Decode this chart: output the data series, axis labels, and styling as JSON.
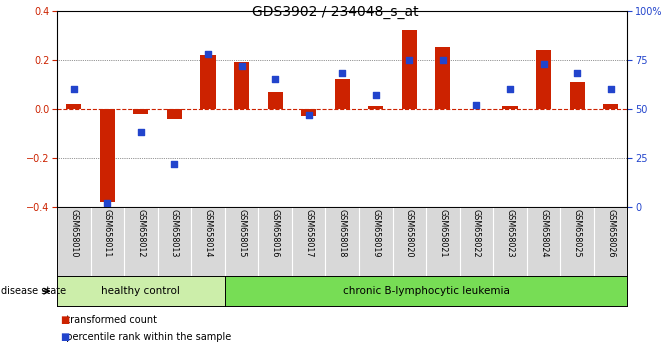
{
  "title": "GDS3902 / 234048_s_at",
  "samples": [
    "GSM658010",
    "GSM658011",
    "GSM658012",
    "GSM658013",
    "GSM658014",
    "GSM658015",
    "GSM658016",
    "GSM658017",
    "GSM658018",
    "GSM658019",
    "GSM658020",
    "GSM658021",
    "GSM658022",
    "GSM658023",
    "GSM658024",
    "GSM658025",
    "GSM658026"
  ],
  "red_bars": [
    0.02,
    -0.38,
    -0.02,
    -0.04,
    0.22,
    0.19,
    0.07,
    -0.03,
    0.12,
    0.01,
    0.32,
    0.25,
    0.0,
    0.01,
    0.24,
    0.11,
    0.02
  ],
  "blue_pct": [
    60,
    2,
    38,
    22,
    78,
    72,
    65,
    47,
    68,
    57,
    75,
    75,
    52,
    60,
    73,
    68,
    60
  ],
  "ylim": [
    -0.4,
    0.4
  ],
  "y2lim": [
    0,
    100
  ],
  "yticks_left": [
    -0.4,
    -0.2,
    0.0,
    0.2,
    0.4
  ],
  "yticks_right": [
    0,
    25,
    50,
    75,
    100
  ],
  "y2labels": [
    "0",
    "25",
    "50",
    "75",
    "100%"
  ],
  "healthy_count": 5,
  "healthy_label": "healthy control",
  "disease_label": "chronic B-lymphocytic leukemia",
  "disease_state_text": "disease state",
  "legend_red": "transformed count",
  "legend_blue": "percentile rank within the sample",
  "bar_color": "#cc2200",
  "dot_color": "#2244cc",
  "healthy_bg": "#cceeaa",
  "disease_bg": "#77dd55",
  "sample_cell_bg": "#d8d8d8",
  "cell_divider": "#ffffff",
  "bg_color": "#ffffff",
  "title_fontsize": 10,
  "tick_fontsize": 7,
  "bar_width": 0.45
}
